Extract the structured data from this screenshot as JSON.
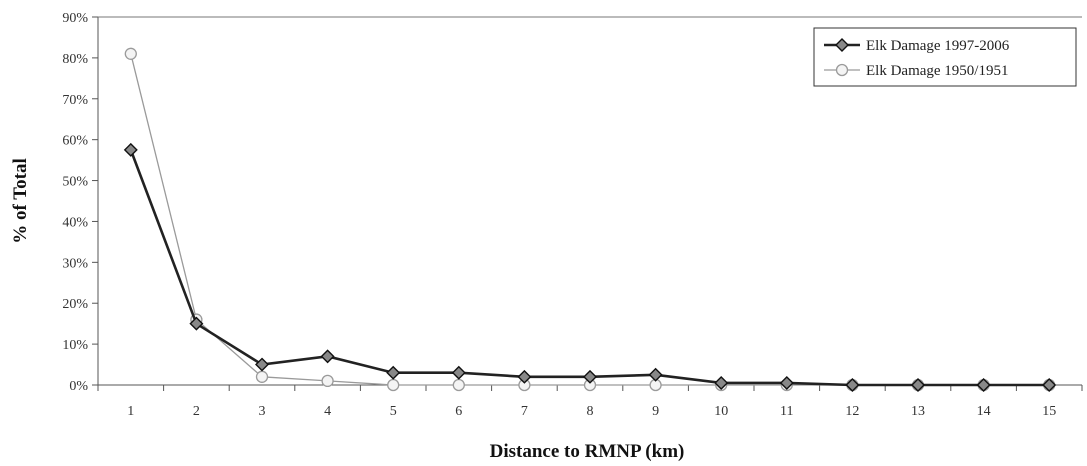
{
  "chart_data": {
    "type": "line",
    "x": [
      1,
      2,
      3,
      4,
      5,
      6,
      7,
      8,
      9,
      10,
      11,
      12,
      13,
      14,
      15
    ],
    "xlabel": "Distance to RMNP (km)",
    "ylabel": "% of Total",
    "ylim": [
      0,
      90
    ],
    "yticks": [
      0,
      10,
      20,
      30,
      40,
      50,
      60,
      70,
      80,
      90
    ],
    "ytick_labels": [
      "0%",
      "10%",
      "20%",
      "30%",
      "40%",
      "50%",
      "60%",
      "70%",
      "80%",
      "90%"
    ],
    "grid": false,
    "legend_position": "top-right",
    "series": [
      {
        "name": "Elk Damage 1997-2006",
        "color": "#222222",
        "marker": "diamond",
        "values": [
          57.5,
          15,
          5,
          7,
          3,
          3,
          2,
          2,
          2.5,
          0.5,
          0.5,
          0,
          0,
          0,
          0
        ]
      },
      {
        "name": "Elk Damage 1950/1951",
        "color": "#9a9a9a",
        "marker": "circle",
        "values": [
          81,
          16,
          2,
          1,
          0,
          0,
          0,
          0,
          0,
          0,
          0,
          0,
          0,
          0,
          0
        ]
      }
    ]
  }
}
